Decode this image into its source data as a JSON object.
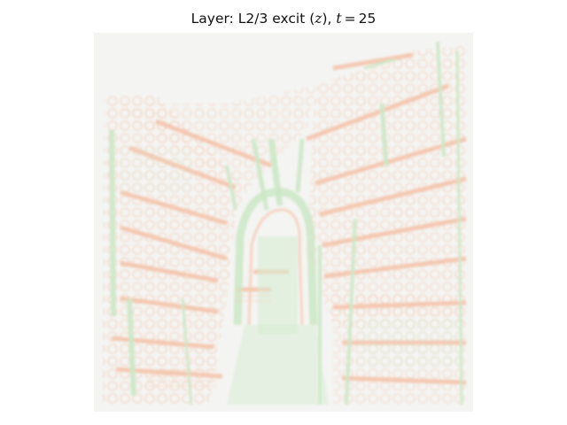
{
  "figure": {
    "title_prefix": "Layer: L2/3 excit (",
    "title_var": "z",
    "title_mid": "), ",
    "title_t_symbol": "t",
    "title_eq": "=",
    "title_t_value": "25"
  },
  "image": {
    "description": "activation heatmap of a stylized staircase/architectural scene",
    "colormap": {
      "background": "#f3f3f1",
      "positive": "#f7c9b4",
      "negative": "#cfe9cc"
    }
  }
}
